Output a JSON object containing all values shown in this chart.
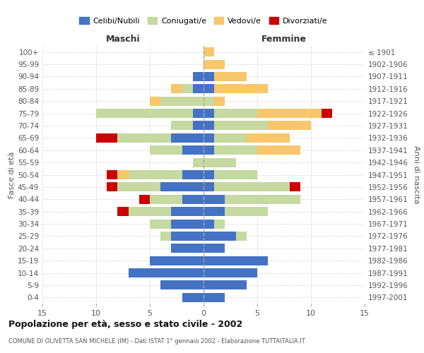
{
  "age_groups": [
    "0-4",
    "5-9",
    "10-14",
    "15-19",
    "20-24",
    "25-29",
    "30-34",
    "35-39",
    "40-44",
    "45-49",
    "50-54",
    "55-59",
    "60-64",
    "65-69",
    "70-74",
    "75-79",
    "80-84",
    "85-89",
    "90-94",
    "95-99",
    "100+"
  ],
  "birth_years": [
    "1997-2001",
    "1992-1996",
    "1987-1991",
    "1982-1986",
    "1977-1981",
    "1972-1976",
    "1967-1971",
    "1962-1966",
    "1957-1961",
    "1952-1956",
    "1947-1951",
    "1942-1946",
    "1937-1941",
    "1932-1936",
    "1927-1931",
    "1922-1926",
    "1917-1921",
    "1912-1916",
    "1907-1911",
    "1902-1906",
    "≤ 1901"
  ],
  "male": {
    "celibe": [
      2,
      4,
      7,
      5,
      3,
      3,
      3,
      3,
      2,
      4,
      2,
      0,
      2,
      3,
      1,
      1,
      0,
      1,
      1,
      0,
      0
    ],
    "coniugato": [
      0,
      0,
      0,
      0,
      0,
      1,
      2,
      4,
      3,
      4,
      5,
      1,
      3,
      5,
      2,
      9,
      4,
      1,
      0,
      0,
      0
    ],
    "vedovo": [
      0,
      0,
      0,
      0,
      0,
      0,
      0,
      0,
      0,
      0,
      1,
      0,
      0,
      0,
      0,
      0,
      1,
      1,
      0,
      0,
      0
    ],
    "divorziato": [
      0,
      0,
      0,
      0,
      0,
      0,
      0,
      1,
      1,
      1,
      1,
      0,
      0,
      2,
      0,
      0,
      0,
      0,
      0,
      0,
      0
    ]
  },
  "female": {
    "nubile": [
      2,
      4,
      5,
      6,
      2,
      3,
      1,
      2,
      2,
      1,
      1,
      0,
      1,
      1,
      1,
      1,
      0,
      1,
      1,
      0,
      0
    ],
    "coniugata": [
      0,
      0,
      0,
      0,
      0,
      1,
      1,
      4,
      7,
      7,
      4,
      3,
      4,
      3,
      5,
      4,
      1,
      0,
      0,
      0,
      0
    ],
    "vedova": [
      0,
      0,
      0,
      0,
      0,
      0,
      0,
      0,
      0,
      0,
      0,
      0,
      4,
      4,
      4,
      6,
      1,
      5,
      3,
      2,
      1
    ],
    "divorziata": [
      0,
      0,
      0,
      0,
      0,
      0,
      0,
      0,
      0,
      1,
      0,
      0,
      0,
      0,
      0,
      1,
      0,
      0,
      0,
      0,
      0
    ]
  },
  "color_celibe": "#4472c4",
  "color_coniugato": "#c5d9a0",
  "color_vedovo": "#f8c66b",
  "color_divorziato": "#cc0000",
  "title_main": "Popolazione per età, sesso e stato civile - 2002",
  "title_sub": "COMUNE DI OLIVETTA SAN MICHELE (IM) - Dati ISTAT 1° gennaio 2002 - Elaborazione TUTTAITALIA.IT",
  "xlabel_left": "Maschi",
  "xlabel_right": "Femmine",
  "ylabel_left": "Fasce di età",
  "ylabel_right": "Anni di nascita",
  "xlim": 15,
  "background_color": "#ffffff",
  "legend_labels": [
    "Celibi/Nubili",
    "Coniugati/e",
    "Vedovi/e",
    "Divorziati/e"
  ]
}
